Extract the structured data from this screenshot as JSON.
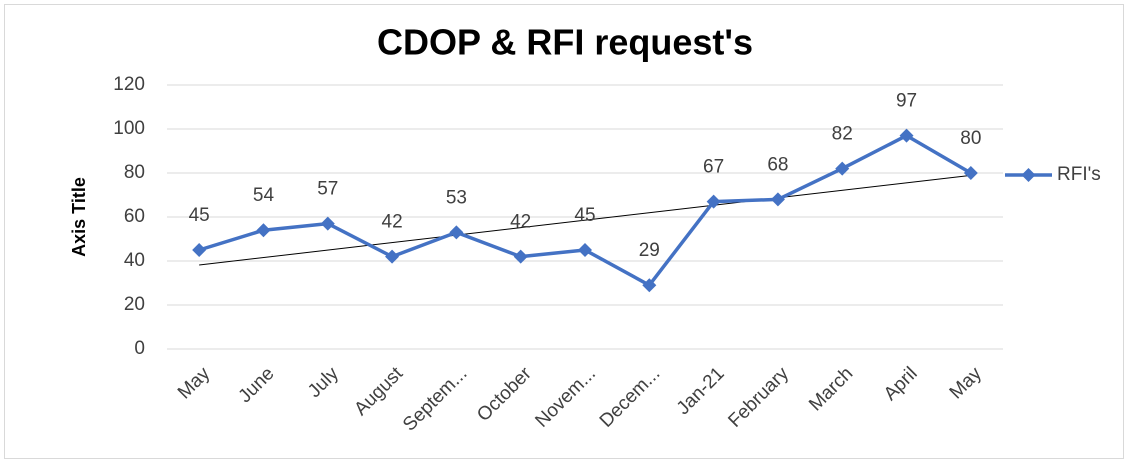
{
  "chart_data": {
    "type": "line",
    "title": "CDOP & RFI request's",
    "y_axis_label": "Axis Title",
    "categories": [
      "May",
      "June",
      "July",
      "August",
      "Septem...",
      "October",
      "Novem...",
      "Decem...",
      "Jan-21",
      "February",
      "March",
      "April",
      "May"
    ],
    "series": [
      {
        "name": "RFI's",
        "color": "#4472c4",
        "values": [
          45,
          54,
          57,
          42,
          53,
          42,
          45,
          29,
          67,
          68,
          82,
          97,
          80
        ]
      }
    ],
    "ylim": [
      0,
      120
    ],
    "yticks": [
      0,
      20,
      40,
      60,
      80,
      100,
      120
    ],
    "grid": true,
    "trendline": "linear",
    "legend": "right",
    "data_labels": true
  }
}
